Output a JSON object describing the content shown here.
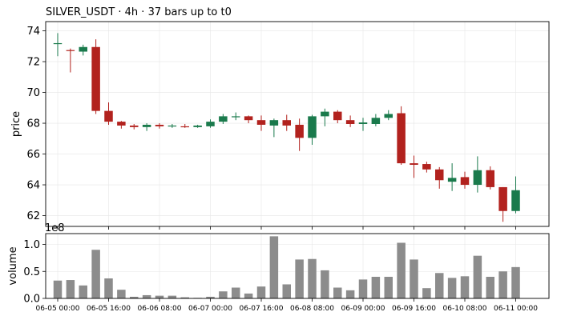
{
  "chart_data": {
    "type": "candlestick",
    "title": "SILVER_USDT  ·  4h  ·  37 bars up to t0",
    "price_panel": {
      "ylabel": "price",
      "ylim": [
        61.3,
        74.6
      ],
      "yticks": [
        62,
        64,
        66,
        68,
        70,
        72,
        74
      ],
      "up_color": "#1a7a4c",
      "down_color": "#b2221e",
      "grid": true
    },
    "volume_panel": {
      "ylabel": "volume",
      "scale_label": "1e8",
      "ylim": [
        0,
        1.2
      ],
      "yticks": [
        0.0,
        0.5,
        1.0
      ],
      "ytick_labels": [
        "0.0",
        "0.5",
        "1.0"
      ],
      "bar_color": "#8c8c8c",
      "grid": true
    },
    "xtick_labels": [
      "06-05 00:00",
      "06-05 16:00",
      "06-06 08:00",
      "06-07 00:00",
      "06-07 16:00",
      "06-08 08:00",
      "06-09 00:00",
      "06-09 16:00",
      "06-10 08:00",
      "06-11 00:00"
    ],
    "xtick_indices": [
      0,
      4,
      8,
      12,
      16,
      20,
      24,
      28,
      32,
      36
    ],
    "candles": [
      {
        "open": 73.2,
        "high": 73.85,
        "low": 72.35,
        "close": 73.2,
        "volume": 0.33
      },
      {
        "open": 72.75,
        "high": 72.85,
        "low": 71.3,
        "close": 72.7,
        "volume": 0.34
      },
      {
        "open": 72.65,
        "high": 73.1,
        "low": 72.4,
        "close": 72.95,
        "volume": 0.24
      },
      {
        "open": 72.95,
        "high": 73.45,
        "low": 68.6,
        "close": 68.8,
        "volume": 0.9
      },
      {
        "open": 68.8,
        "high": 69.35,
        "low": 67.9,
        "close": 68.1,
        "volume": 0.37
      },
      {
        "open": 68.1,
        "high": 68.15,
        "low": 67.65,
        "close": 67.85,
        "volume": 0.16
      },
      {
        "open": 67.85,
        "high": 67.95,
        "low": 67.6,
        "close": 67.75,
        "volume": 0.03
      },
      {
        "open": 67.75,
        "high": 68.0,
        "low": 67.5,
        "close": 67.9,
        "volume": 0.06
      },
      {
        "open": 67.9,
        "high": 68.0,
        "low": 67.65,
        "close": 67.8,
        "volume": 0.05
      },
      {
        "open": 67.8,
        "high": 67.95,
        "low": 67.7,
        "close": 67.85,
        "volume": 0.05
      },
      {
        "open": 67.8,
        "high": 67.95,
        "low": 67.7,
        "close": 67.75,
        "volume": 0.02
      },
      {
        "open": 67.75,
        "high": 67.9,
        "low": 67.7,
        "close": 67.85,
        "volume": 0.01
      },
      {
        "open": 67.8,
        "high": 68.25,
        "low": 67.7,
        "close": 68.1,
        "volume": 0.03
      },
      {
        "open": 68.1,
        "high": 68.6,
        "low": 67.95,
        "close": 68.45,
        "volume": 0.13
      },
      {
        "open": 68.45,
        "high": 68.7,
        "low": 68.2,
        "close": 68.45,
        "volume": 0.2
      },
      {
        "open": 68.45,
        "high": 68.5,
        "low": 68.0,
        "close": 68.2,
        "volume": 0.09
      },
      {
        "open": 68.2,
        "high": 68.5,
        "low": 67.5,
        "close": 67.9,
        "volume": 0.22
      },
      {
        "open": 67.85,
        "high": 68.3,
        "low": 67.1,
        "close": 68.2,
        "volume": 1.15
      },
      {
        "open": 68.2,
        "high": 68.55,
        "low": 67.5,
        "close": 67.85,
        "volume": 0.26
      },
      {
        "open": 67.9,
        "high": 68.3,
        "low": 66.2,
        "close": 67.05,
        "volume": 0.72
      },
      {
        "open": 67.05,
        "high": 68.55,
        "low": 66.6,
        "close": 68.45,
        "volume": 0.73
      },
      {
        "open": 68.45,
        "high": 68.95,
        "low": 67.8,
        "close": 68.75,
        "volume": 0.52
      },
      {
        "open": 68.75,
        "high": 68.85,
        "low": 68.0,
        "close": 68.2,
        "volume": 0.2
      },
      {
        "open": 68.2,
        "high": 68.5,
        "low": 67.75,
        "close": 67.95,
        "volume": 0.15
      },
      {
        "open": 67.95,
        "high": 68.35,
        "low": 67.5,
        "close": 68.05,
        "volume": 0.35
      },
      {
        "open": 67.95,
        "high": 68.6,
        "low": 67.8,
        "close": 68.35,
        "volume": 0.4
      },
      {
        "open": 68.35,
        "high": 68.85,
        "low": 68.2,
        "close": 68.6,
        "volume": 0.4
      },
      {
        "open": 68.65,
        "high": 69.1,
        "low": 65.3,
        "close": 65.4,
        "volume": 1.03
      },
      {
        "open": 65.4,
        "high": 65.9,
        "low": 64.45,
        "close": 65.3,
        "volume": 0.72
      },
      {
        "open": 65.35,
        "high": 65.5,
        "low": 64.8,
        "close": 65.0,
        "volume": 0.19
      },
      {
        "open": 65.0,
        "high": 65.15,
        "low": 63.75,
        "close": 64.3,
        "volume": 0.47
      },
      {
        "open": 64.2,
        "high": 65.4,
        "low": 63.6,
        "close": 64.45,
        "volume": 0.38
      },
      {
        "open": 64.5,
        "high": 64.85,
        "low": 63.75,
        "close": 64.0,
        "volume": 0.41
      },
      {
        "open": 64.0,
        "high": 65.85,
        "low": 63.5,
        "close": 64.95,
        "volume": 0.79
      },
      {
        "open": 64.95,
        "high": 65.2,
        "low": 63.7,
        "close": 63.85,
        "volume": 0.4
      },
      {
        "open": 63.85,
        "high": 63.85,
        "low": 61.6,
        "close": 62.3,
        "volume": 0.5
      },
      {
        "open": 62.3,
        "high": 64.55,
        "low": 62.15,
        "close": 63.65,
        "volume": 0.58
      }
    ]
  }
}
